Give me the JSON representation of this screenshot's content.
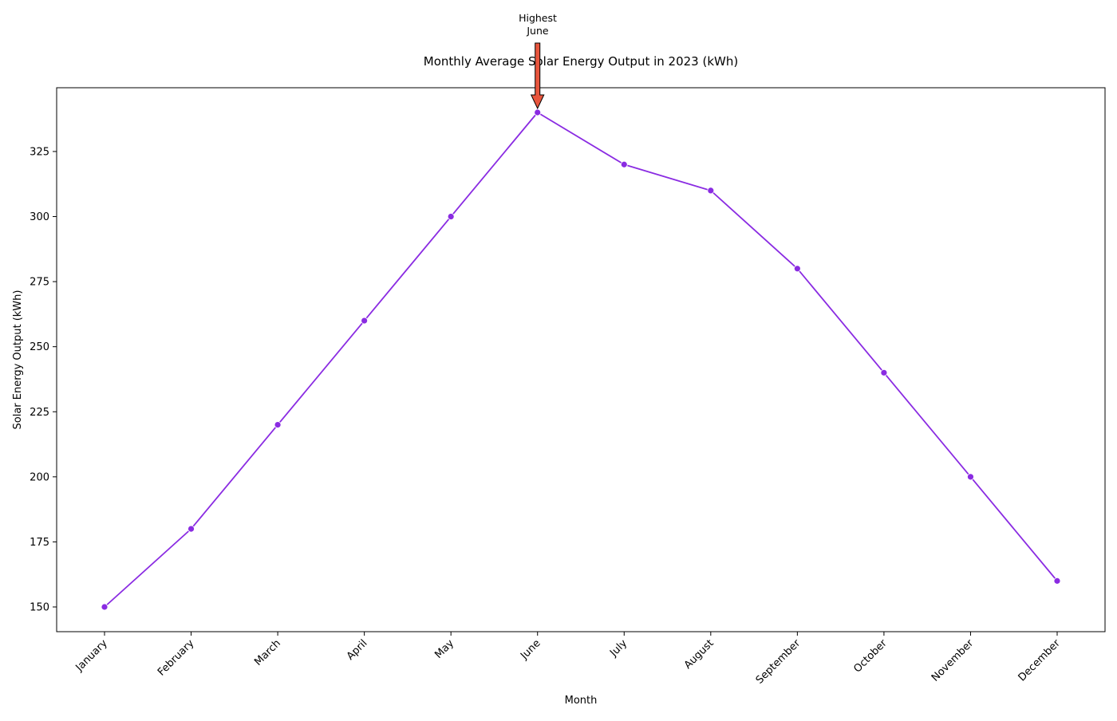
{
  "chart_data": {
    "type": "line",
    "title": "Monthly Average Solar Energy Output in 2023 (kWh)",
    "xlabel": "Month",
    "ylabel": "Solar Energy Output (kWh)",
    "categories": [
      "January",
      "February",
      "March",
      "April",
      "May",
      "June",
      "July",
      "August",
      "September",
      "October",
      "November",
      "December"
    ],
    "series": [
      {
        "values": [
          150,
          180,
          220,
          260,
          300,
          340,
          320,
          310,
          280,
          240,
          200,
          160
        ],
        "color": "#8A2BE2"
      }
    ],
    "ylim": [
      140.5,
      349.5
    ],
    "yticks": [
      150,
      175,
      200,
      225,
      250,
      275,
      300,
      325
    ],
    "ytick_labels": [
      "150",
      "175",
      "200",
      "225",
      "250",
      "275",
      "300",
      "325"
    ],
    "grid": false,
    "legend": "none",
    "x_tick_rotation_deg": 45,
    "annotation": {
      "line1": "Highest",
      "line2": "June",
      "target_category": "June",
      "target_value": 340,
      "arrow_color": "#E8553D"
    }
  }
}
